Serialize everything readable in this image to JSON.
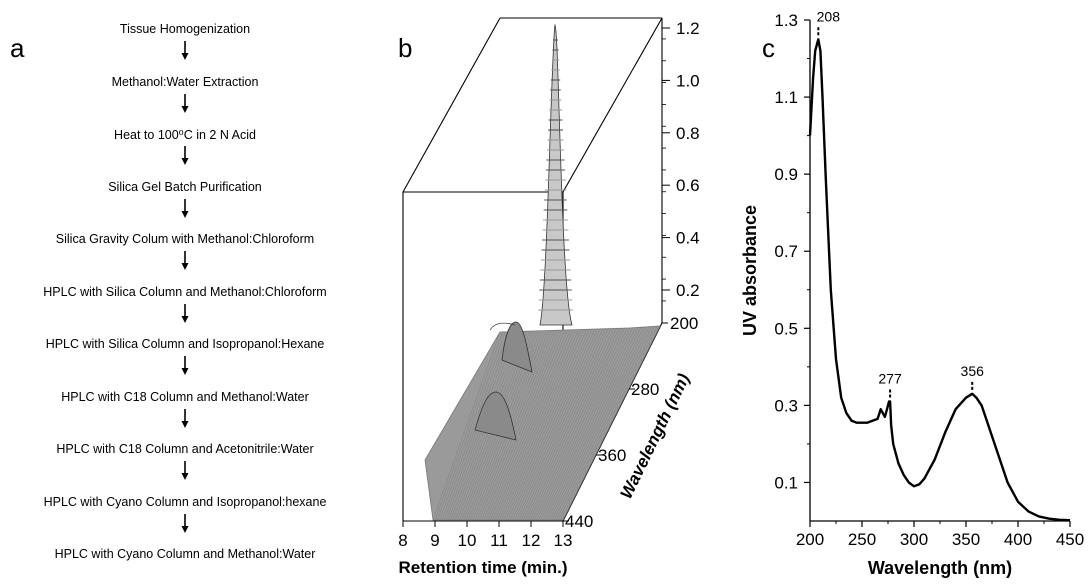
{
  "panel_a": {
    "letter": "a",
    "steps": [
      "Tissue Homogenization",
      "Methanol:Water Extraction",
      "Heat to 100⁰C in 2 N Acid",
      "Silica Gel Batch Purification",
      "Silica Gravity Colum with Methanol:Chloroform",
      "HPLC with Silica Column and Methanol:Chloroform",
      "HPLC with Silica Column and Isopropanol:Hexane",
      "HPLC with C18 Column and Methanol:Water",
      "HPLC with C18 Column and Acetonitrile:Water",
      "HPLC with Cyano Column and Isopropanol:hexane",
      "HPLC with Cyano Column and Methanol:Water"
    ]
  },
  "panel_b": {
    "letter": "b",
    "x_label": "Retention time (min.)",
    "x_ticks": [
      "8",
      "9",
      "10",
      "11",
      "12",
      "13"
    ],
    "z_ticks": [
      "0.2",
      "0.4",
      "0.6",
      "0.8",
      "1.0",
      "1.2"
    ],
    "wavelength_label": "Wavelength (nm)",
    "wavelength_ticks": [
      "200",
      "280",
      "360",
      "440"
    ]
  },
  "chart_data": [
    {
      "type": "line",
      "panel": "b",
      "xlabel": "Retention time (min.)",
      "zlabel": "Wavelength (nm)",
      "xlim": [
        8,
        13
      ],
      "ylim": [
        0,
        1.2
      ],
      "zlim": [
        200,
        440
      ],
      "peaks": [
        {
          "retention_time": 12.5,
          "max_absorbance": 1.2,
          "wavelength": 208
        },
        {
          "retention_time": 12.5,
          "max_absorbance": 0.3,
          "wavelength": 277
        },
        {
          "retention_time": 12.5,
          "max_absorbance": 0.33,
          "wavelength": 356
        }
      ]
    },
    {
      "type": "line",
      "panel": "c",
      "xlabel": "Wavelength (nm)",
      "ylabel": "UV absorbance",
      "xlim": [
        200,
        450
      ],
      "ylim": [
        0,
        1.3
      ],
      "x_ticks": [
        200,
        250,
        300,
        350,
        400,
        450
      ],
      "y_ticks": [
        0.1,
        0.3,
        0.5,
        0.7,
        0.9,
        1.1,
        1.3
      ],
      "x": [
        200,
        203,
        205,
        207,
        208,
        210,
        212,
        215,
        218,
        220,
        225,
        230,
        235,
        240,
        245,
        250,
        255,
        260,
        265,
        268,
        270,
        272,
        274,
        276,
        277,
        278,
        280,
        285,
        290,
        295,
        300,
        305,
        310,
        320,
        330,
        340,
        350,
        356,
        360,
        365,
        370,
        380,
        390,
        400,
        410,
        420,
        430,
        440,
        450
      ],
      "y": [
        1.0,
        1.15,
        1.22,
        1.24,
        1.25,
        1.22,
        1.1,
        0.9,
        0.72,
        0.6,
        0.42,
        0.32,
        0.28,
        0.26,
        0.255,
        0.255,
        0.255,
        0.26,
        0.265,
        0.29,
        0.28,
        0.27,
        0.29,
        0.31,
        0.31,
        0.25,
        0.2,
        0.15,
        0.12,
        0.1,
        0.09,
        0.095,
        0.11,
        0.16,
        0.23,
        0.29,
        0.32,
        0.33,
        0.32,
        0.3,
        0.26,
        0.18,
        0.1,
        0.05,
        0.025,
        0.012,
        0.006,
        0.003,
        0.002
      ],
      "annotations": [
        {
          "text": "208",
          "x": 208,
          "y": 1.25
        },
        {
          "text": "277",
          "x": 277,
          "y": 0.31
        },
        {
          "text": "356",
          "x": 356,
          "y": 0.33
        }
      ]
    }
  ],
  "panel_c": {
    "letter": "c",
    "xlabel": "Wavelength (nm)",
    "ylabel": "UV absorbance"
  }
}
